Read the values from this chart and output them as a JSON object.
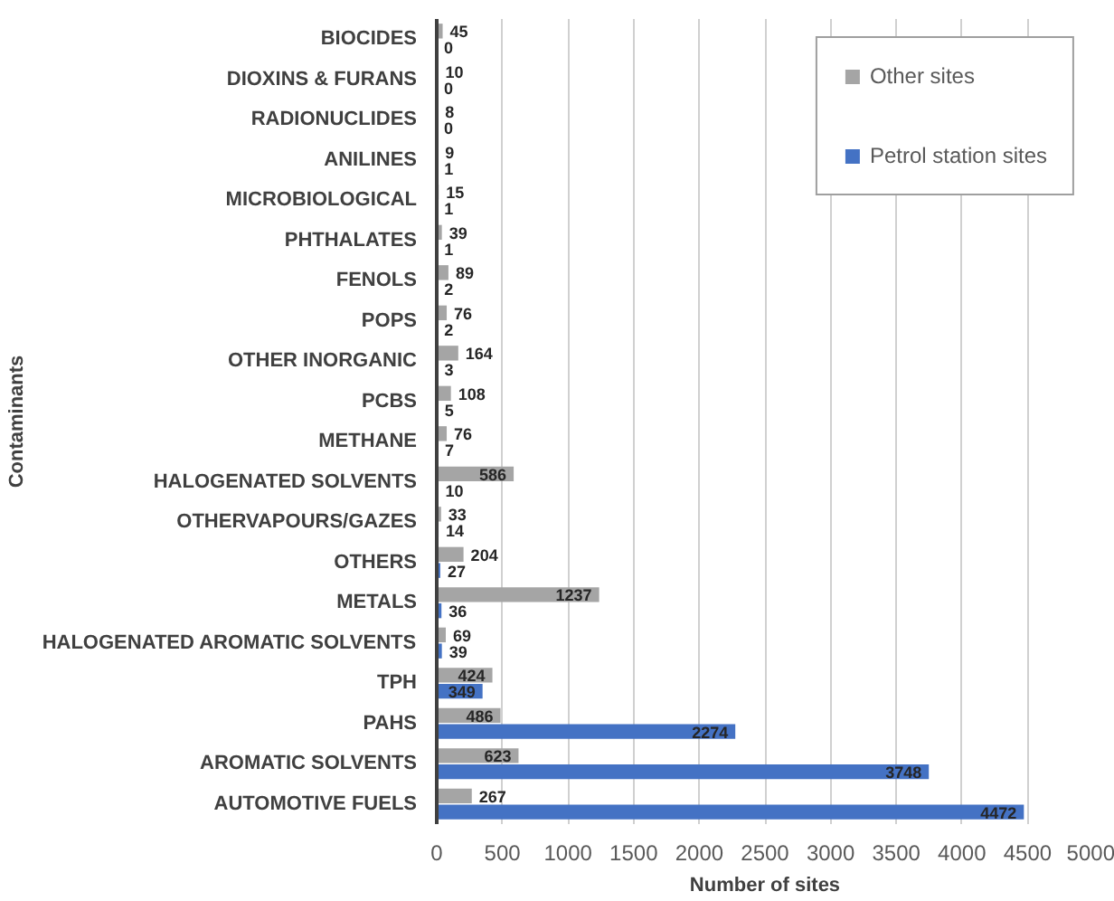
{
  "chart_data": {
    "type": "bar",
    "orientation": "horizontal",
    "xlabel": "Number of sites",
    "ylabel": "Contaminants",
    "categories": [
      "BIOCIDES",
      "DIOXINS & FURANS",
      "RADIONUCLIDES",
      "ANILINES",
      "MICROBIOLOGICAL",
      "PHTHALATES",
      "FENOLS",
      "POPS",
      "OTHER INORGANIC",
      "PCBS",
      "METHANE",
      "HALOGENATED SOLVENTS",
      "OTHERVAPOURS/GAZES",
      "OTHERS",
      "METALS",
      "HALOGENATED AROMATIC SOLVENTS",
      "TPH",
      "PAHS",
      "AROMATIC SOLVENTS",
      "AUTOMOTIVE FUELS"
    ],
    "series": [
      {
        "name": "Other sites",
        "color": "#a5a5a5",
        "values": [
          45,
          10,
          8,
          9,
          15,
          39,
          89,
          76,
          164,
          108,
          76,
          586,
          33,
          204,
          1237,
          69,
          424,
          486,
          623,
          267
        ]
      },
      {
        "name": "Petrol station sites",
        "color": "#4472c4",
        "values": [
          0,
          0,
          0,
          1,
          1,
          1,
          2,
          2,
          3,
          5,
          7,
          10,
          14,
          27,
          36,
          39,
          349,
          2274,
          3748,
          4472
        ]
      }
    ],
    "xlim": [
      0,
      5000
    ],
    "xticks": [
      0,
      500,
      1000,
      1500,
      2000,
      2500,
      3000,
      3500,
      4000,
      4500,
      5000
    ],
    "grid": "x",
    "legend": "top right",
    "data_labels": true
  }
}
